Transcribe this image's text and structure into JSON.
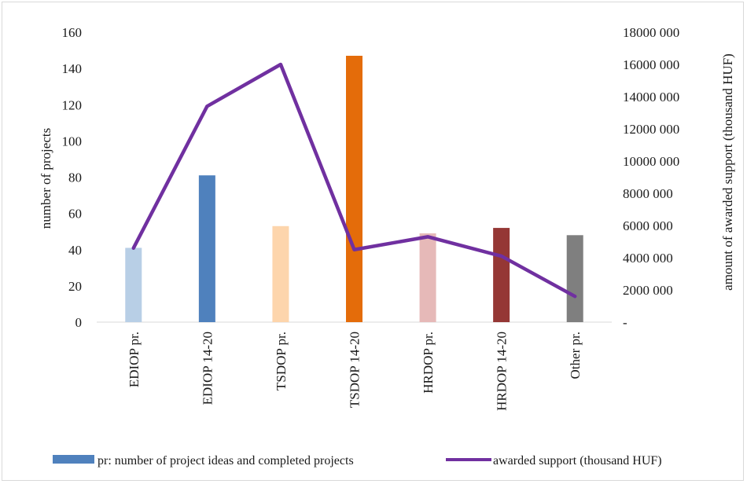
{
  "chart_data": {
    "type": "bar+line",
    "categories": [
      "EDIOP pr.",
      "EDIOP 14-20",
      "TSDOP pr.",
      "TSDOP 14-20",
      "HRDOP pr.",
      "HRDOP 14-20",
      "Other pr."
    ],
    "bars": {
      "values": [
        41,
        81,
        53,
        147,
        49,
        52,
        48
      ],
      "colors": [
        "#b8cfe6",
        "#4f81bd",
        "#fdd5ac",
        "#e46c0a",
        "#e6b9b8",
        "#953735",
        "#7f7f7f"
      ]
    },
    "line": {
      "values": [
        4600000,
        13400000,
        16000000,
        4500000,
        5300000,
        4100000,
        1600000
      ],
      "color": "#7030a0"
    },
    "y_left": {
      "label": "number of projects",
      "ticks": [
        "0",
        "20",
        "40",
        "60",
        "80",
        "100",
        "120",
        "140",
        "160"
      ],
      "range": [
        0,
        160
      ]
    },
    "y_right": {
      "label": "amount of awarded support  (thousand HUF)",
      "ticks": [
        "-",
        "2000 000",
        "4000 000",
        "6000 000",
        "8000 000",
        "10000 000",
        "12000 000",
        "14000 000",
        "16000 000",
        "18000 000"
      ],
      "range": [
        0,
        18000000
      ]
    },
    "legend": {
      "position": "bottom",
      "bar_label": "pr: number of project ideas and completed projects",
      "bar_color": "#4f81bd",
      "line_label": "awarded support (thousand HUF)"
    },
    "grid": false
  }
}
